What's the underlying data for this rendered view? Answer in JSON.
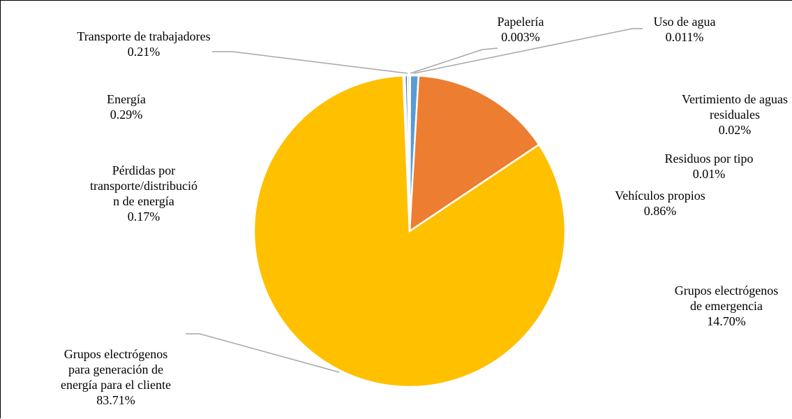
{
  "chart_data": {
    "type": "pie",
    "slices": [
      {
        "name": "Grupos electrógenos para generación de energía para el cliente",
        "value": 83.71,
        "label": "83.71%",
        "color": "#FFC000"
      },
      {
        "name": "Grupos electrógenos de emergencia",
        "value": 14.7,
        "label": "14.70%",
        "color": "#ED7D31"
      },
      {
        "name": "Vehículos propios",
        "value": 0.86,
        "label": "0.86%",
        "color": "#5B9BD5"
      },
      {
        "name": "Residuos por tipo",
        "value": 0.01,
        "label": "0.01%",
        "color": "#70AD47"
      },
      {
        "name": "Vertimiento de aguas residuales",
        "value": 0.02,
        "label": "0.02%",
        "color": "#264478"
      },
      {
        "name": "Uso de agua",
        "value": 0.011,
        "label": "0.011%",
        "color": "#9E480E"
      },
      {
        "name": "Papelería",
        "value": 0.003,
        "label": "0.003%",
        "color": "#636363"
      },
      {
        "name": "Transporte de trabajadores",
        "value": 0.21,
        "label": "0.21%",
        "color": "#A5A5A5"
      },
      {
        "name": "Energía",
        "value": 0.29,
        "label": "0.29%",
        "color": "#4472C4"
      },
      {
        "name": "Pérdidas por transporte/distribución de energía",
        "value": 0.17,
        "label": "0.17%",
        "color": "#997300"
      }
    ]
  },
  "labels": {
    "grupos_cliente": {
      "name": "Grupos electrógenos\npara generación de\nenergía para el cliente",
      "pct": "83.71%"
    },
    "grupos_emergencia": {
      "name": "Grupos electrógenos\nde emergencia",
      "pct": "14.70%"
    },
    "vehiculos": {
      "name": "Vehículos propios",
      "pct": "0.86%"
    },
    "residuos": {
      "name": "Residuos por tipo",
      "pct": "0.01%"
    },
    "vertimiento": {
      "name": "Vertimiento de aguas\nresiduales",
      "pct": "0.02%"
    },
    "uso_agua": {
      "name": "Uso de agua",
      "pct": "0.011%"
    },
    "papeleria": {
      "name": "Papelería",
      "pct": "0.003%"
    },
    "transporte": {
      "name": "Transporte de trabajadores",
      "pct": "0.21%"
    },
    "energia": {
      "name": "Energía",
      "pct": "0.29%"
    },
    "perdidas": {
      "name": "Pérdidas por\ntransporte/distribució\nn de energía",
      "pct": "0.17%"
    }
  }
}
